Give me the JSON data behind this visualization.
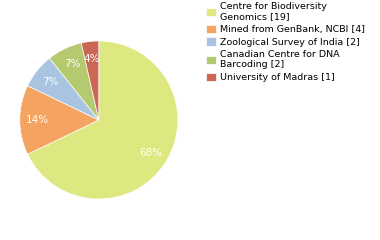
{
  "labels": [
    "Centre for Biodiversity\nGenomics [19]",
    "Mined from GenBank, NCBI [4]",
    "Zoological Survey of India [2]",
    "Canadian Centre for DNA\nBarcoding [2]",
    "University of Madras [1]"
  ],
  "values": [
    19,
    4,
    2,
    2,
    1
  ],
  "colors": [
    "#dde880",
    "#f4a460",
    "#a8c4e0",
    "#b5c96e",
    "#cc6655"
  ],
  "background_color": "#ffffff",
  "pct_color": "white",
  "pct_fontsize": 7.5,
  "legend_fontsize": 6.8,
  "startangle": 90,
  "pct_distance": 0.78
}
